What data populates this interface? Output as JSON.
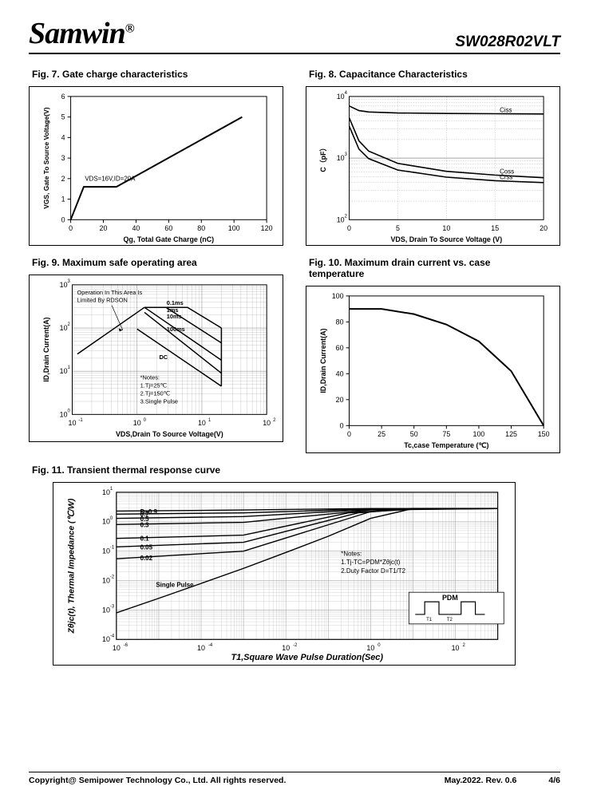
{
  "header": {
    "logo": "Samwin",
    "logo_symbol": "®",
    "part_number": "SW028R02VLT"
  },
  "colors": {
    "text": "#000000",
    "bg": "#ffffff",
    "line": "#000000",
    "grid": "#888888",
    "grid_dash": "#999999"
  },
  "fig7": {
    "title": "Fig. 7. Gate charge characteristics",
    "type": "line",
    "xlabel": "Qg, Total Gate Charge (nC)",
    "ylabel": "VGS, Gate To  Source Voltage(V)",
    "xlim": [
      0,
      120
    ],
    "xtick_step": 20,
    "ylim": [
      0,
      6
    ],
    "ytick_step": 1,
    "condition": "VDS=16V,ID=20A",
    "line_color": "#000000",
    "line_width": 2,
    "points": [
      [
        0,
        0
      ],
      [
        8,
        1.6
      ],
      [
        28,
        1.6
      ],
      [
        105,
        5
      ]
    ]
  },
  "fig8": {
    "title": "Fig. 8. Capacitance Characteristics",
    "type": "loglinear",
    "xlabel": "VDS, Drain To Source Voltage (V)",
    "ylabel": "C（pF）",
    "xlim": [
      0,
      20
    ],
    "xtick_step": 5,
    "ylim_log": [
      100,
      10000
    ],
    "grid_color": "#888888",
    "line_color": "#000000",
    "line_width": 1.6,
    "series": [
      {
        "label": "Ciss",
        "points": [
          [
            0,
            7000
          ],
          [
            1,
            5900
          ],
          [
            2,
            5600
          ],
          [
            5,
            5400
          ],
          [
            10,
            5300
          ],
          [
            15,
            5250
          ],
          [
            20,
            5200
          ]
        ]
      },
      {
        "label": "Coss",
        "points": [
          [
            0,
            4500
          ],
          [
            1,
            1900
          ],
          [
            2,
            1300
          ],
          [
            5,
            820
          ],
          [
            10,
            610
          ],
          [
            15,
            530
          ],
          [
            20,
            480
          ]
        ]
      },
      {
        "label": "Crss",
        "points": [
          [
            0,
            3300
          ],
          [
            1,
            1400
          ],
          [
            2,
            980
          ],
          [
            5,
            640
          ],
          [
            10,
            490
          ],
          [
            15,
            430
          ],
          [
            20,
            400
          ]
        ]
      }
    ]
  },
  "fig9": {
    "title": "Fig. 9. Maximum safe operating area",
    "type": "loglog",
    "xlabel": "VDS,Drain To Source Voltage(V)",
    "ylabel": "ID,Drain Current(A)",
    "xlim_log": [
      0.1,
      100
    ],
    "ylim_log": [
      1,
      1000
    ],
    "annotation": "Operation In This Area Is\nLimited By RDSON",
    "notes": "*Notes:\n1.Tj=25℃\n2.Tj=150℃\n3.Single Pulse",
    "line_color": "#000000",
    "line_width": 1.5,
    "rise": [
      [
        0.12,
        25
      ],
      [
        1.3,
        300
      ]
    ],
    "curves": [
      {
        "label": "0.1ms",
        "points": [
          [
            1.3,
            300
          ],
          [
            6,
            300
          ],
          [
            20,
            100
          ]
        ]
      },
      {
        "label": "1ms",
        "points": [
          [
            1.3,
            300
          ],
          [
            2.8,
            300
          ],
          [
            20,
            45
          ]
        ]
      },
      {
        "label": "10ms",
        "points": [
          [
            1.3,
            300
          ],
          [
            1.5,
            260
          ],
          [
            20,
            18
          ]
        ]
      },
      {
        "label": "100ms",
        "points": [
          [
            1.3,
            230
          ],
          [
            20,
            9
          ]
        ]
      },
      {
        "label": "DC",
        "points": [
          [
            1.0,
            95
          ],
          [
            20,
            4.5
          ]
        ]
      }
    ]
  },
  "fig10": {
    "title": "Fig. 10. Maximum drain current vs. case\n              temperature",
    "type": "line",
    "xlabel": "Tc,case Temperature (℃)",
    "ylabel": "ID,Drain Current(A)",
    "xlim": [
      0,
      150
    ],
    "xtick_step": 25,
    "ylim": [
      0,
      100
    ],
    "ytick_step": 20,
    "line_color": "#000000",
    "line_width": 2,
    "points": [
      [
        0,
        90
      ],
      [
        25,
        90
      ],
      [
        50,
        86
      ],
      [
        75,
        78
      ],
      [
        100,
        65
      ],
      [
        125,
        42
      ],
      [
        150,
        0
      ]
    ]
  },
  "fig11": {
    "title": "Fig. 11. Transient thermal response curve",
    "type": "loglog",
    "xlabel": "T1,Square Wave Pulse Duration(Sec)",
    "ylabel": "Zθjc(t), Thermal Impedance (℃/W)",
    "xlim_log": [
      1e-06,
      1000
    ],
    "ylim_log": [
      0.0001,
      10
    ],
    "line_color": "#000000",
    "line_width": 1.4,
    "notes": "*Notes:\n1.Tj-TC=PDM*Zθjc(t)\n2.Duty Factor D=T1/T2",
    "d_labels": [
      "D=0.9",
      "0.7",
      "0.5",
      "0.3",
      "0.1",
      "0.05",
      "0.02"
    ],
    "single_pulse_label": "Single Pulse",
    "diagram_label": "PDM",
    "curves": [
      {
        "d": "0.9",
        "points": [
          [
            1e-06,
            2.3
          ],
          [
            0.001,
            2.5
          ],
          [
            1,
            2.8
          ],
          [
            1000,
            2.8
          ]
        ]
      },
      {
        "d": "0.7",
        "points": [
          [
            1e-06,
            1.8
          ],
          [
            0.001,
            2.0
          ],
          [
            1,
            2.7
          ],
          [
            1000,
            2.8
          ]
        ]
      },
      {
        "d": "0.5",
        "points": [
          [
            1e-06,
            1.3
          ],
          [
            0.001,
            1.5
          ],
          [
            1,
            2.6
          ],
          [
            1000,
            2.8
          ]
        ]
      },
      {
        "d": "0.3",
        "points": [
          [
            1e-06,
            0.8
          ],
          [
            0.001,
            0.95
          ],
          [
            1,
            2.5
          ],
          [
            1000,
            2.8
          ]
        ]
      },
      {
        "d": "0.1",
        "points": [
          [
            1e-06,
            0.27
          ],
          [
            0.001,
            0.35
          ],
          [
            0.3,
            2.0
          ],
          [
            10,
            2.8
          ],
          [
            1000,
            2.8
          ]
        ]
      },
      {
        "d": "0.05",
        "points": [
          [
            1e-06,
            0.14
          ],
          [
            0.001,
            0.2
          ],
          [
            0.5,
            2.0
          ],
          [
            10,
            2.8
          ],
          [
            1000,
            2.8
          ]
        ]
      },
      {
        "d": "0.02",
        "points": [
          [
            1e-06,
            0.055
          ],
          [
            0.001,
            0.1
          ],
          [
            1,
            2.2
          ],
          [
            20,
            2.8
          ],
          [
            1000,
            2.8
          ]
        ]
      },
      {
        "d": "single",
        "points": [
          [
            1e-06,
            0.0008
          ],
          [
            1e-05,
            0.0025
          ],
          [
            0.0001,
            0.008
          ],
          [
            0.001,
            0.026
          ],
          [
            0.01,
            0.09
          ],
          [
            0.1,
            0.32
          ],
          [
            1,
            1.3
          ],
          [
            10,
            2.8
          ],
          [
            1000,
            2.8
          ]
        ]
      }
    ]
  },
  "footer": {
    "copyright": "Copyright@ Semipower Technology Co., Ltd. All rights reserved.",
    "date_rev": "May.2022. Rev. 0.6",
    "page": "4/6"
  }
}
